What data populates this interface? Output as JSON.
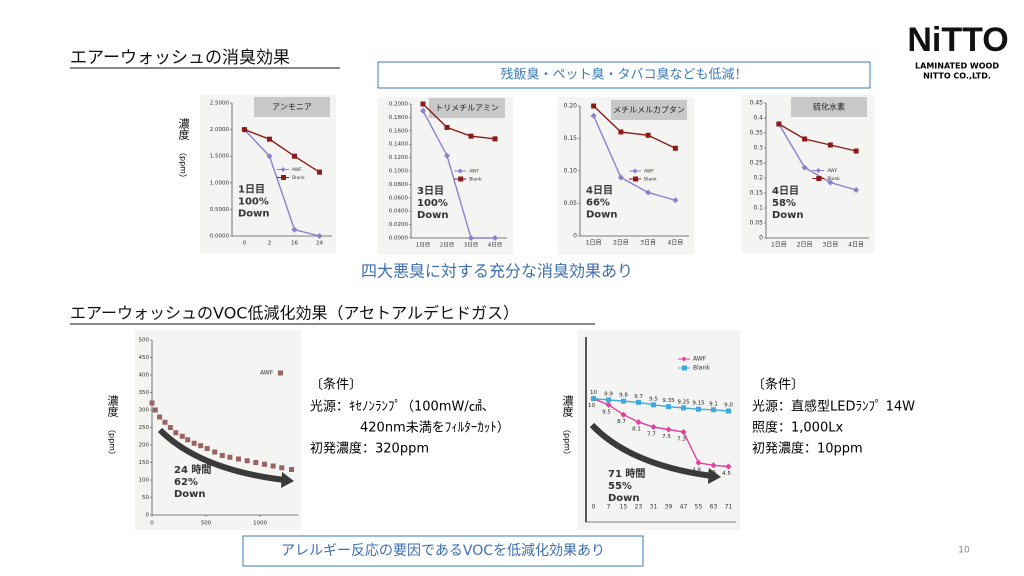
{
  "header": {
    "title": "エアーウォッシュの消臭効果",
    "banner": "残飯臭・ペット臭・タバコ臭なども低減！"
  },
  "logo": {
    "name": "NiTTO",
    "line1": "LAMINATED WOOD",
    "line2": "NITTO CO.,LTD."
  },
  "odor_caption": "四大悪臭に対する充分な消臭効果あり",
  "voc_title": "エアーウォッシュのVOC低減化効果（アセトアルデヒドガス）",
  "voc_banner": "アレルギー反応の要因であるVOCを低減化効果あり",
  "conditions": [
    [
      "〔条件〕",
      "光源：ｷｾﾉﾝﾗﾝﾌﾟ（100mW/㎠、",
      "420nm未満をﾌｨﾙﾀｰｶｯﾄ）",
      "初発濃度：320ppm"
    ],
    [
      "〔条件〕",
      "光源：直感型LEDﾗﾝﾌﾟ 14W",
      "照度：1,000Lx",
      "初発濃度：10ppm"
    ]
  ],
  "page_number": "10",
  "chart_data": [
    {
      "type": "line",
      "title": "アンモニア",
      "ylabel": "濃度",
      "yunit": "（ppm）",
      "categories": [
        "0",
        "2",
        "16",
        "24"
      ],
      "series": [
        {
          "name": "AWF",
          "color": "#8a80d0",
          "values": [
            2.0,
            1.5,
            0.12,
            0.0
          ]
        },
        {
          "name": "Blank",
          "color": "#8b1a1a",
          "values": [
            2.0,
            1.82,
            1.5,
            1.2
          ]
        }
      ],
      "ylim": [
        0,
        2.5
      ],
      "yticks": [
        {
          "value": 0,
          "label": "0.0000"
        },
        {
          "value": 0.5,
          "label": "0.5000"
        },
        {
          "value": 1,
          "label": "1.0000"
        },
        {
          "value": 1.5,
          "label": "1.5000"
        },
        {
          "value": 2,
          "label": "2.0000"
        },
        {
          "value": 2.5,
          "label": "2.5000"
        }
      ],
      "annotation": [
        "1日目",
        "100%",
        "Down"
      ]
    },
    {
      "type": "line",
      "title": "トリメチルアミン",
      "categories": [
        "1日目",
        "2日目",
        "3日目",
        "4日目"
      ],
      "series": [
        {
          "name": "AWF",
          "color": "#8a80d0",
          "values": [
            0.19,
            0.123,
            0.0,
            0.0
          ]
        },
        {
          "name": "Blank",
          "color": "#8b1a1a",
          "values": [
            0.2,
            0.165,
            0.152,
            0.148
          ]
        }
      ],
      "ylim": [
        0,
        0.2
      ],
      "yticks": [
        {
          "value": 0,
          "label": "0.0000"
        },
        {
          "value": 0.02,
          "label": "0.0200"
        },
        {
          "value": 0.04,
          "label": "0.0400"
        },
        {
          "value": 0.06,
          "label": "0.0600"
        },
        {
          "value": 0.08,
          "label": "0.0800"
        },
        {
          "value": 0.1,
          "label": "0.1000"
        },
        {
          "value": 0.12,
          "label": "0.1200"
        },
        {
          "value": 0.14,
          "label": "0.1400"
        },
        {
          "value": 0.16,
          "label": "0.1600"
        },
        {
          "value": 0.18,
          "label": "0.1800"
        },
        {
          "value": 0.2,
          "label": "0.2000"
        }
      ],
      "annotation": [
        "3日目",
        "100%",
        "Down"
      ]
    },
    {
      "type": "line",
      "title": "メチルメルカプタン",
      "categories": [
        "1日目",
        "2日目",
        "3日目",
        "4日目"
      ],
      "series": [
        {
          "name": "AWF",
          "color": "#8a80d0",
          "values": [
            0.185,
            0.09,
            0.067,
            0.055
          ]
        },
        {
          "name": "Blank",
          "color": "#8b1a1a",
          "values": [
            0.2,
            0.16,
            0.155,
            0.135
          ]
        }
      ],
      "ylim": [
        0,
        0.2
      ],
      "yticks": [
        0,
        0.05,
        {
          "value": 0.1,
          "label": "0.10"
        },
        0.15,
        {
          "value": 0.2,
          "label": "0.20"
        }
      ],
      "annotation": [
        "4日目",
        "66%",
        "Down"
      ]
    },
    {
      "type": "line",
      "title": "硫化水素",
      "categories": [
        "1日目",
        "2日目",
        "3日目",
        "4日目"
      ],
      "series": [
        {
          "name": "AWF",
          "color": "#8a80d0",
          "values": [
            0.38,
            0.235,
            0.185,
            0.16
          ]
        },
        {
          "name": "Blank",
          "color": "#8b1a1a",
          "values": [
            0.38,
            0.33,
            0.31,
            0.29
          ]
        }
      ],
      "ylim": [
        0,
        0.45
      ],
      "yticks": [
        0,
        0.05,
        0.1,
        0.15,
        0.2,
        0.25,
        0.3,
        0.35,
        0.4,
        0.45
      ],
      "annotation": [
        "4日目",
        "58%",
        "Down"
      ]
    },
    {
      "type": "scatter",
      "ylabel": "濃度",
      "yunit": "（ppm）",
      "series": [
        {
          "name": "AWF",
          "color": "#9b6262",
          "x": [
            0,
            30,
            70,
            120,
            170,
            220,
            280,
            330,
            390,
            450,
            510,
            580,
            650,
            720,
            800,
            880,
            960,
            1040,
            1120,
            1200,
            1290
          ],
          "values": [
            320,
            300,
            280,
            265,
            250,
            235,
            225,
            215,
            205,
            198,
            190,
            180,
            170,
            165,
            160,
            155,
            150,
            145,
            140,
            135,
            130
          ]
        }
      ],
      "xlim": [
        0,
        1350
      ],
      "xticks": [
        0,
        500,
        1000
      ],
      "ylim": [
        0,
        500
      ],
      "yticks": [
        0,
        50,
        100,
        150,
        200,
        250,
        300,
        350,
        400,
        450,
        500
      ],
      "annotation": [
        "24 時間",
        "62%",
        "Down"
      ]
    },
    {
      "type": "line",
      "ylabel": "濃度",
      "yunit": "（ppm）",
      "categories": [
        "0",
        "7",
        "15",
        "23",
        "31",
        "39",
        "47",
        "55",
        "63",
        "71"
      ],
      "series": [
        {
          "name": "AWF",
          "color": "#e0409c",
          "values": [
            10,
            9.5,
            8.7,
            8.1,
            7.7,
            7.5,
            7.3,
            4.8,
            4.6,
            4.5
          ],
          "value_labels": [
            "10",
            "9.5",
            "8.7",
            "8.1",
            "7.7",
            "7.5",
            "7.3",
            "4.8",
            "4.6",
            "4.5"
          ]
        },
        {
          "name": "Blank",
          "color": "#3fa9e0",
          "values": [
            10,
            9.9,
            9.8,
            9.7,
            9.5,
            9.35,
            9.25,
            9.15,
            9.1,
            9.0
          ],
          "value_labels": [
            "10",
            "9.9",
            "9.8",
            "9.7",
            "9.5",
            "9.35",
            "9.25",
            "9.15",
            "9.1",
            "9.0"
          ]
        }
      ],
      "ylim": [
        0,
        15
      ],
      "annotation": [
        "71 時間",
        "55%",
        "Down"
      ]
    }
  ]
}
